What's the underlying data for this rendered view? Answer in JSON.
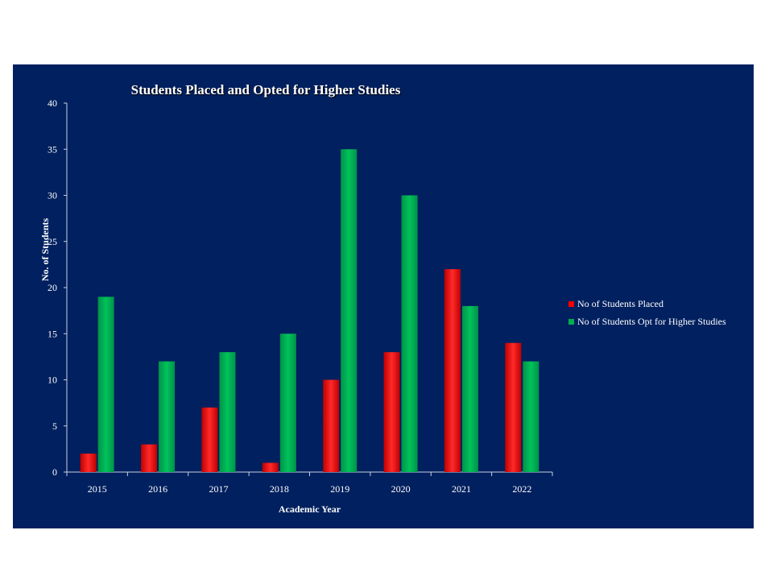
{
  "chart_data": {
    "type": "bar",
    "title": "Students Placed and Opted for Higher Studies",
    "xlabel": "Academic Year",
    "ylabel": "No. of Students",
    "categories": [
      "2015",
      "2016",
      "2017",
      "2018",
      "2019",
      "2020",
      "2021",
      "2022"
    ],
    "series": [
      {
        "name": "No of Students Placed",
        "color": "#ff0000",
        "values": [
          2,
          3,
          7,
          1,
          10,
          13,
          22,
          14
        ]
      },
      {
        "name": "No of Students Opt for Higher Studies",
        "color": "#00b050",
        "values": [
          19,
          12,
          13,
          15,
          35,
          30,
          18,
          12
        ]
      }
    ],
    "ylim": [
      0,
      40
    ],
    "yticks": [
      0,
      5,
      10,
      15,
      20,
      25,
      30,
      35,
      40
    ],
    "grid": false,
    "legend_position": "right",
    "background": "#00205f"
  }
}
